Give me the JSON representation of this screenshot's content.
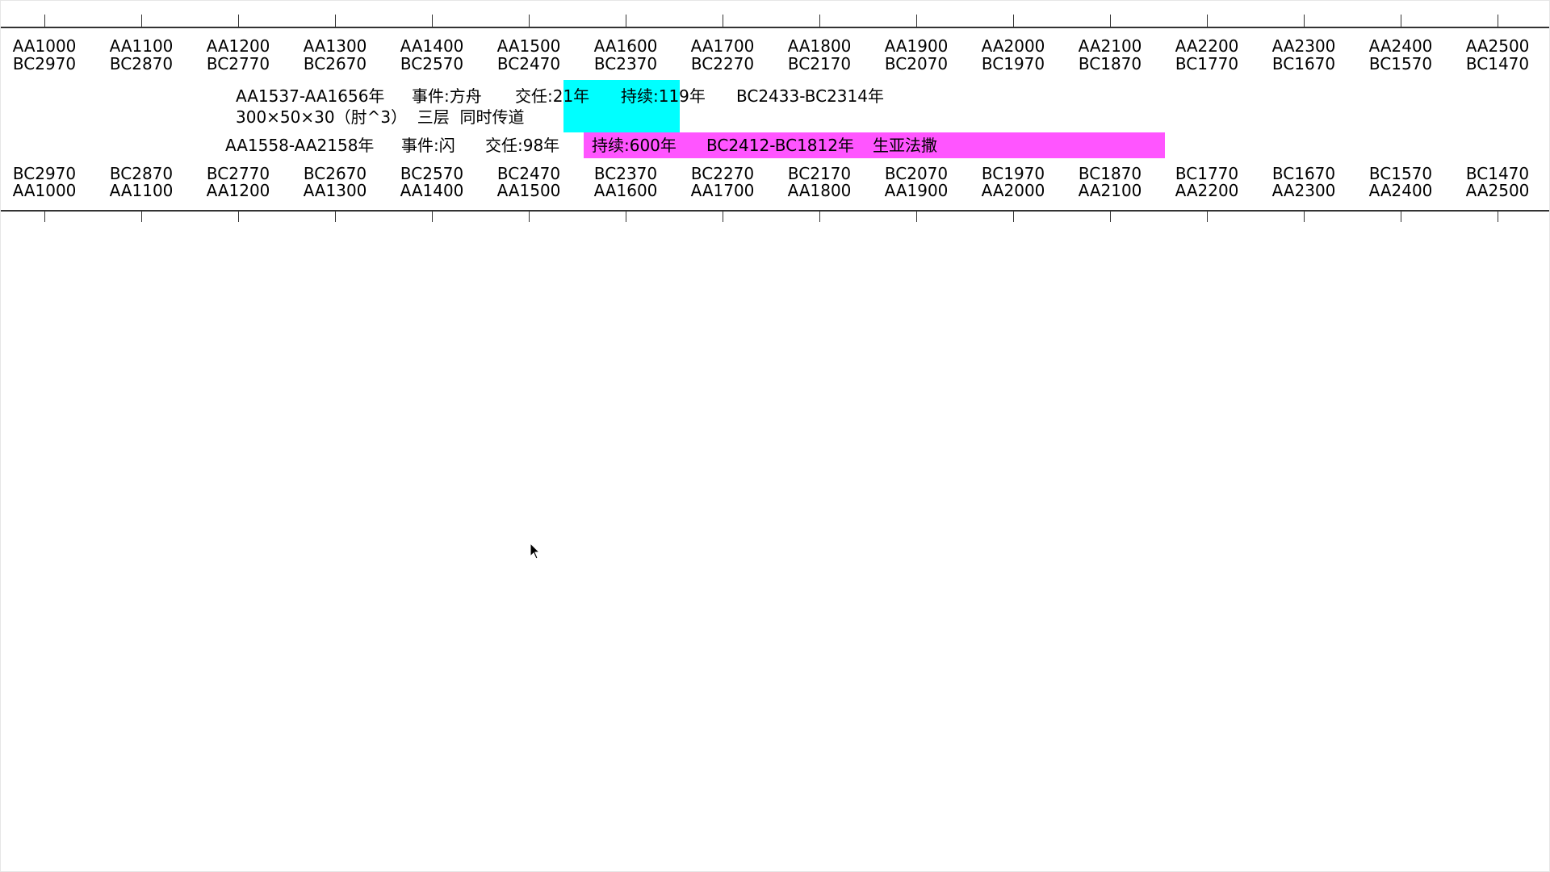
{
  "top_ruler": {
    "labels_a": [
      "AA1000",
      "AA1100",
      "AA1200",
      "AA1300",
      "AA1400",
      "AA1500",
      "AA1600",
      "AA1700",
      "AA1800",
      "AA1900",
      "AA2000",
      "AA2100",
      "AA2200",
      "AA2300",
      "AA2400",
      "AA2500"
    ],
    "labels_b": [
      "BC2970",
      "BC2870",
      "BC2770",
      "BC2670",
      "BC2570",
      "BC2470",
      "BC2370",
      "BC2270",
      "BC2170",
      "BC2070",
      "BC1970",
      "BC1870",
      "BC1770",
      "BC1670",
      "BC1570",
      "BC1470"
    ]
  },
  "events": [
    {
      "range": "AA1537-AA1656年",
      "event": "事件:方舟",
      "handover": "交任:21年",
      "duration": "持续:119年",
      "bc_range": "BC2433-BC2314年",
      "note": "300×50×30（肘^3）  三层  同时传道",
      "color": "#00ffff"
    },
    {
      "range": "AA1558-AA2158年",
      "event": "事件:闪",
      "handover": "交任:98年",
      "duration": "持续:600年",
      "bc_range": "BC2412-BC1812年",
      "note": "生亚法撒",
      "color": "#ff55ff"
    }
  ],
  "bottom_ruler": {
    "labels_b": [
      "BC2970",
      "BC2870",
      "BC2770",
      "BC2670",
      "BC2570",
      "BC2470",
      "BC2370",
      "BC2270",
      "BC2170",
      "BC2070",
      "BC1970",
      "BC1870",
      "BC1770",
      "BC1670",
      "BC1570",
      "BC1470"
    ],
    "labels_a": [
      "AA1000",
      "AA1100",
      "AA1200",
      "AA1300",
      "AA1400",
      "AA1500",
      "AA1600",
      "AA1700",
      "AA1800",
      "AA1900",
      "AA2000",
      "AA2100",
      "AA2200",
      "AA2300",
      "AA2400",
      "AA2500"
    ]
  }
}
